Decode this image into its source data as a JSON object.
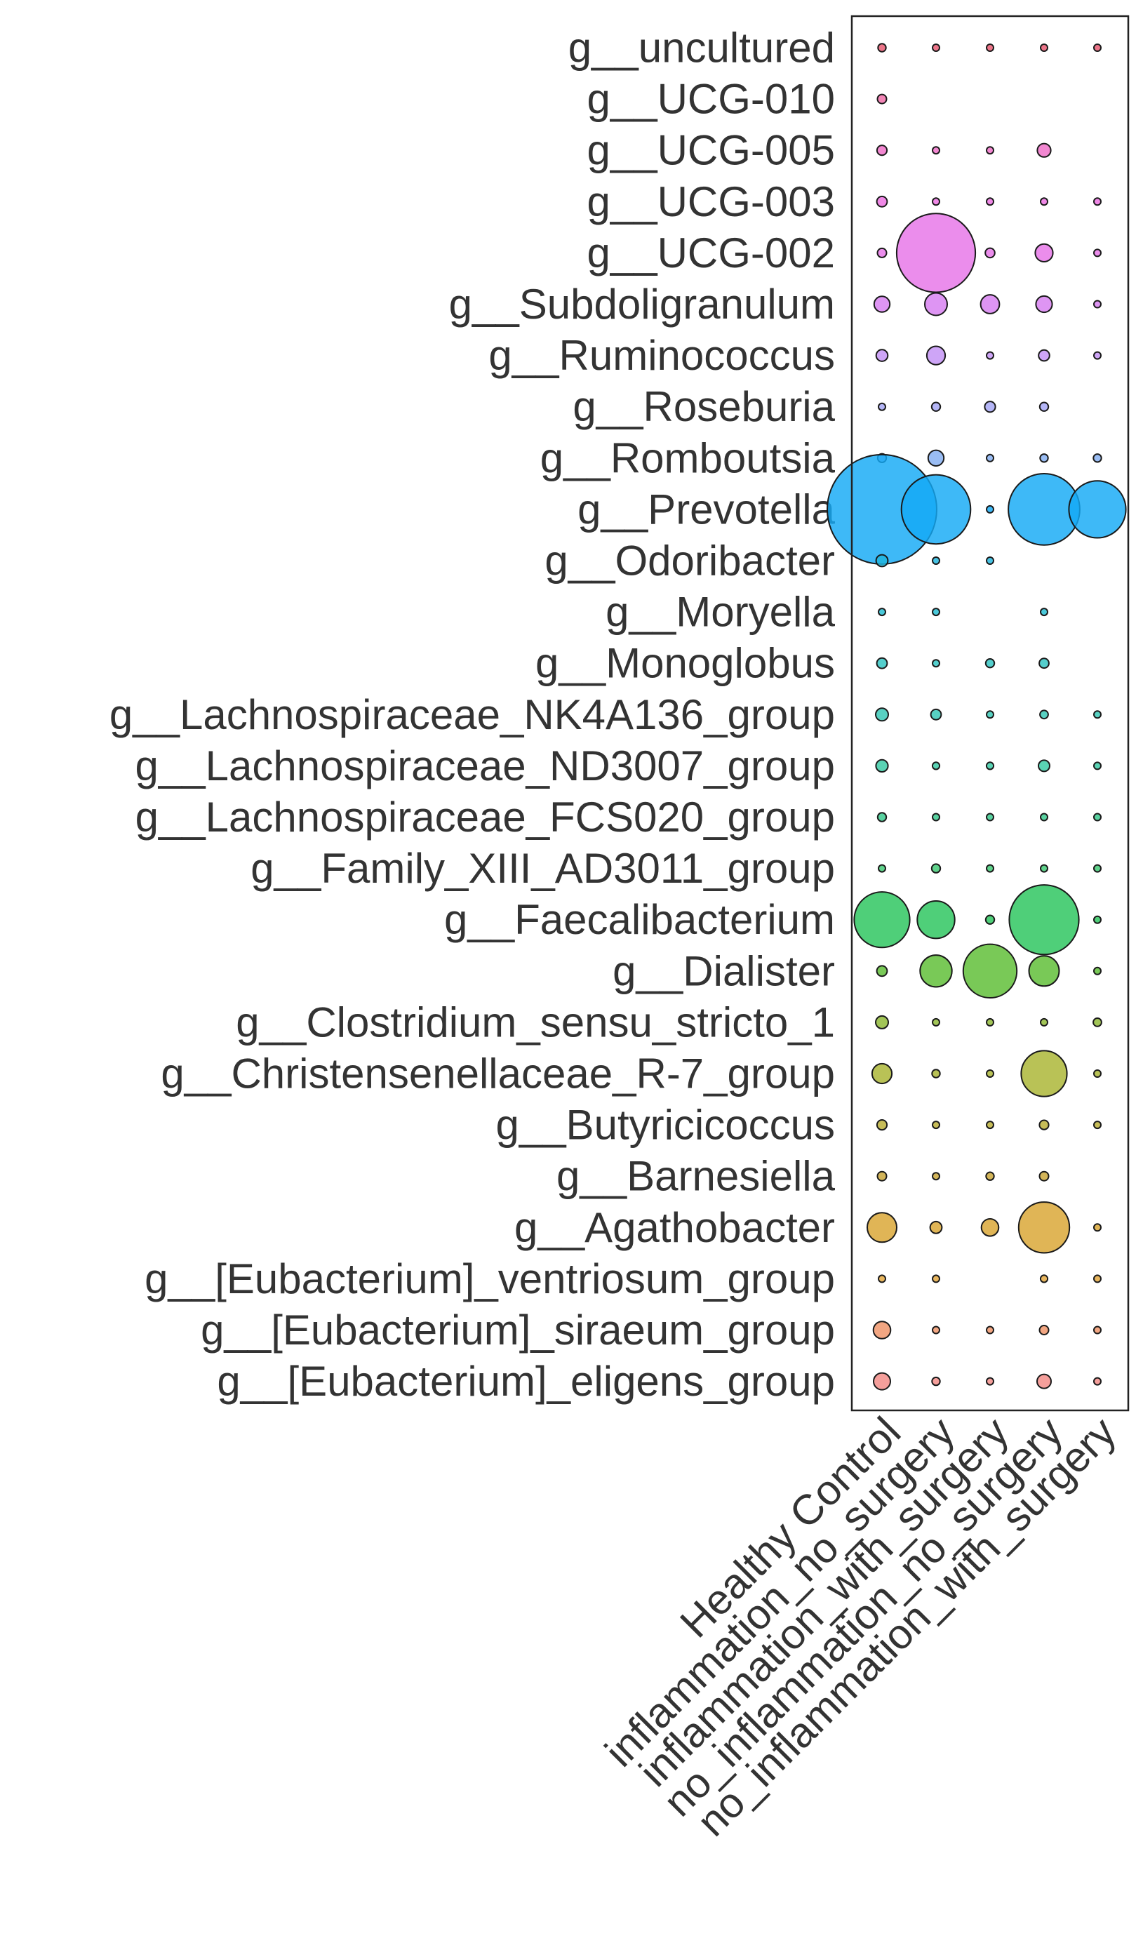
{
  "chart_data": {
    "type": "bubble",
    "rows": [
      "g__uncultured",
      "g__UCG-010",
      "g__UCG-005",
      "g__UCG-003",
      "g__UCG-002",
      "g__Subdoligranulum",
      "g__Ruminococcus",
      "g__Roseburia",
      "g__Romboutsia",
      "g__Prevotella",
      "g__Odoribacter",
      "g__Moryella",
      "g__Monoglobus",
      "g__Lachnospiraceae_NK4A136_group",
      "g__Lachnospiraceae_ND3007_group",
      "g__Lachnospiraceae_FCS020_group",
      "g__Family_XIII_AD3011_group",
      "g__Faecalibacterium",
      "g__Dialister",
      "g__Clostridium_sensu_stricto_1",
      "g__Christensenellaceae_R-7_group",
      "g__Butyricicoccus",
      "g__Barnesiella",
      "g__Agathobacter",
      "g__[Eubacterium]_ventriosum_group",
      "g__[Eubacterium]_siraeum_group",
      "g__[Eubacterium]_eligens_group"
    ],
    "columns": [
      "Healthy Control",
      "inflammation_no_surgery",
      "inflammation_with_surgery",
      "no_inflammation_no_surgery",
      "no_inflammation_with_surgery"
    ],
    "row_colors": [
      "#e8576f",
      "#ef6aa6",
      "#ef6cc7",
      "#eb6ee0",
      "#e674e8",
      "#d77ef0",
      "#c391f5",
      "#a5a6f5",
      "#84aef2",
      "#14aaf5",
      "#1fb5dd",
      "#22bdd2",
      "#2ec4c2",
      "#33c7b4",
      "#36c9a3",
      "#35c88b",
      "#3cc872",
      "#28c45c",
      "#5cbd32",
      "#8eb832",
      "#a9b431",
      "#bbae33",
      "#c9a534",
      "#d9a531",
      "#e3a63a",
      "#ef9366",
      "#f38a85"
    ],
    "relative_abundance": [
      [
        0.021,
        0.014,
        0.01,
        0.014,
        0.006
      ],
      [
        0.028,
        null,
        null,
        null,
        null
      ],
      [
        0.033,
        0.01,
        0.006,
        0.061,
        null
      ],
      [
        0.036,
        0.01,
        0.014,
        0.012,
        0.006
      ],
      [
        0.028,
        2.072,
        0.03,
        0.105,
        0.006
      ],
      [
        0.082,
        0.168,
        0.118,
        0.089,
        0.009
      ],
      [
        0.045,
        0.112,
        0.006,
        0.04,
        0.007
      ],
      [
        0.016,
        0.025,
        0.038,
        0.025,
        null
      ],
      [
        0.025,
        0.082,
        0.007,
        0.021,
        0.021
      ],
      [
        4.0,
        1.6,
        0.007,
        1.706,
        1.085
      ],
      [
        0.046,
        0.004,
        0.01,
        null,
        null
      ],
      [
        0.011,
        0.006,
        null,
        0.008,
        null
      ],
      [
        0.036,
        0.012,
        0.025,
        0.031,
        null
      ],
      [
        0.053,
        0.036,
        0.007,
        0.023,
        0.006
      ],
      [
        0.049,
        0.017,
        0.017,
        0.042,
        0.006
      ],
      [
        0.025,
        0.014,
        0.01,
        0.014,
        0.005
      ],
      [
        0.014,
        0.025,
        0.004,
        0.012,
        0.004
      ],
      [
        1.03,
        0.47,
        0.025,
        1.62,
        0.01
      ],
      [
        0.036,
        0.34,
        0.96,
        0.305,
        0.014
      ],
      [
        0.053,
        0.01,
        0.008,
        0.01,
        0.023
      ],
      [
        0.13,
        0.021,
        0.006,
        0.7,
        0.005
      ],
      [
        0.033,
        0.016,
        0.01,
        0.029,
        0.004
      ],
      [
        0.028,
        0.011,
        0.021,
        0.028,
        null
      ],
      [
        0.29,
        0.046,
        0.1,
        0.86,
        0.01
      ],
      [
        0.014,
        0.014,
        null,
        0.017,
        0.005
      ],
      [
        0.1,
        0.006,
        0.012,
        0.028,
        0.005
      ],
      [
        0.095,
        0.021,
        0.008,
        0.066,
        0.005
      ]
    ],
    "size_scale_max": 4.0,
    "title": "",
    "xlabel": "",
    "ylabel": "",
    "legend": "none",
    "grid": false
  }
}
